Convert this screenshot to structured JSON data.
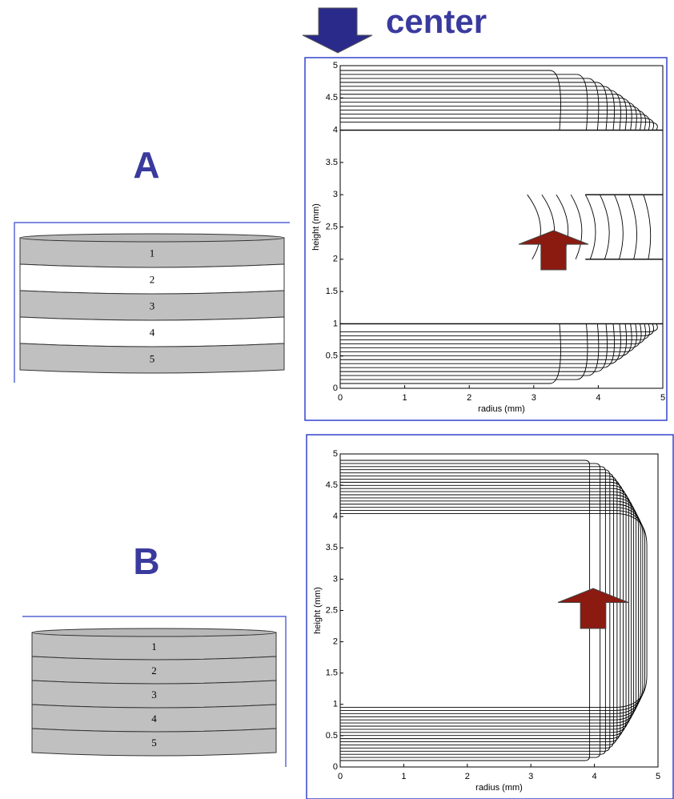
{
  "center_label": "center",
  "panels": [
    {
      "label": "A",
      "layers": [
        "1",
        "2",
        "3",
        "4",
        "5"
      ],
      "plot": {
        "xlabel": "radius (mm)",
        "ylabel": "height (mm)",
        "xlim": [
          0,
          5
        ],
        "ylim": [
          0,
          5
        ],
        "xticks": [
          0,
          1,
          2,
          3,
          4,
          5
        ],
        "yticks": [
          0,
          0.5,
          1,
          1.5,
          2,
          2.5,
          3,
          3.5,
          4,
          4.5,
          5
        ]
      }
    },
    {
      "label": "B",
      "layers": [
        "1",
        "2",
        "3",
        "4",
        "5"
      ],
      "plot": {
        "xlabel": "radius (mm)",
        "ylabel": "height (mm)",
        "xlim": [
          0,
          5
        ],
        "ylim": [
          0,
          5
        ],
        "xticks": [
          0,
          1,
          2,
          3,
          4,
          5
        ],
        "yticks": [
          0,
          0.5,
          1,
          1.5,
          2,
          2.5,
          3,
          3.5,
          4,
          4.5,
          5
        ]
      }
    }
  ]
}
